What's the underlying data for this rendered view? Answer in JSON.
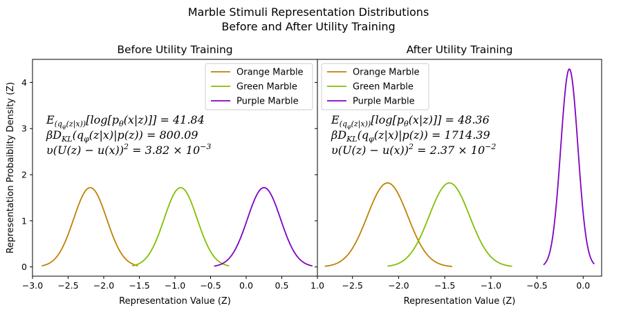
{
  "figure": {
    "suptitle_line1": "Marble Stimuli Representation Distributions",
    "suptitle_line2": "Before and After Utility Training",
    "ylabel": "Representation Probaiblity Density (Z)"
  },
  "chart_data": [
    {
      "type": "line",
      "title": "Before Utility Training",
      "xlabel": "Representation Value (Z)",
      "ylabel": "Representation Probaiblity Density (Z)",
      "xlim": [
        -3.0,
        1.0
      ],
      "ylim": [
        -0.2,
        4.5
      ],
      "xticks": [
        "−3.0",
        "−2.5",
        "−2.0",
        "−1.5",
        "−1.0",
        "−0.5",
        "0.0",
        "0.5",
        "1.0"
      ],
      "xtick_values": [
        -3.0,
        -2.5,
        -2.0,
        -1.5,
        -1.0,
        -0.5,
        0.0,
        0.5,
        1.0
      ],
      "yticks": [
        "0",
        "1",
        "2",
        "3",
        "4"
      ],
      "ytick_values": [
        0,
        1,
        2,
        3,
        4
      ],
      "legend_position": "top-right",
      "series": [
        {
          "name": "Orange Marble",
          "color": "#bf8000",
          "curve": "gaussian",
          "mean": -2.19,
          "sd": 0.232,
          "x_range": [
            -2.87,
            -1.52
          ]
        },
        {
          "name": "Green Marble",
          "color": "#80bf00",
          "curve": "gaussian",
          "mean": -0.92,
          "sd": 0.232,
          "x_range": [
            -1.6,
            -0.24
          ]
        },
        {
          "name": "Purple Marble",
          "color": "#8000bf",
          "curve": "gaussian",
          "mean": 0.25,
          "sd": 0.232,
          "x_range": [
            -0.45,
            0.93
          ]
        }
      ],
      "annotations": [
        {
          "prefix": "E",
          "sub": "(q",
          "subsub": "φ",
          "sub2": "(z|x))",
          "body": "[log[p",
          "bsub": "θ",
          "tail": "(x|z)]] = 41.84"
        },
        {
          "prefix": "βD",
          "sub": "KL",
          "body": "(q",
          "bsub": "φ",
          "tail": "(z|x)|p(z)) = 800.09"
        },
        {
          "prefix": "υ(U(z) − u(x))",
          "sup": "2",
          "tail": " = 3.82 × 10",
          "exp": "−3"
        }
      ]
    },
    {
      "type": "line",
      "title": "After Utility Training",
      "xlabel": "Representation Value (Z)",
      "xlim": [
        -2.88,
        0.2
      ],
      "ylim": [
        -0.2,
        4.5
      ],
      "xticks": [
        "−2.5",
        "−2.0",
        "−1.5",
        "−1.0",
        "−0.5",
        "0.0"
      ],
      "xtick_values": [
        -2.5,
        -2.0,
        -1.5,
        -1.0,
        -0.5,
        0.0
      ],
      "ytick_values": [
        0,
        1,
        2,
        3,
        4
      ],
      "legend_position": "top-left",
      "series": [
        {
          "name": "Orange Marble",
          "color": "#bf8000",
          "curve": "gaussian",
          "mean": -2.12,
          "sd": 0.219,
          "x_range": [
            -2.8,
            -1.42
          ]
        },
        {
          "name": "Green Marble",
          "color": "#80bf00",
          "curve": "gaussian",
          "mean": -1.45,
          "sd": 0.219,
          "x_range": [
            -2.12,
            -0.77
          ]
        },
        {
          "name": "Purple Marble",
          "color": "#8000bf",
          "curve": "gaussian",
          "mean": -0.15,
          "sd": 0.093,
          "x_range": [
            -0.43,
            0.12
          ]
        }
      ],
      "annotations": [
        {
          "prefix": "E",
          "sub": "(q",
          "subsub": "φ",
          "sub2": "(z|x))",
          "body": "[log[p",
          "bsub": "θ",
          "tail": "(x|z)]] = 48.36"
        },
        {
          "prefix": "βD",
          "sub": "KL",
          "body": "(q",
          "bsub": "φ",
          "tail": "(z|x)|p(z)) = 1714.39"
        },
        {
          "prefix": "υ(U(z) − u(x))",
          "sup": "2",
          "tail": " = 2.37 × 10",
          "exp": "−2"
        }
      ]
    }
  ]
}
